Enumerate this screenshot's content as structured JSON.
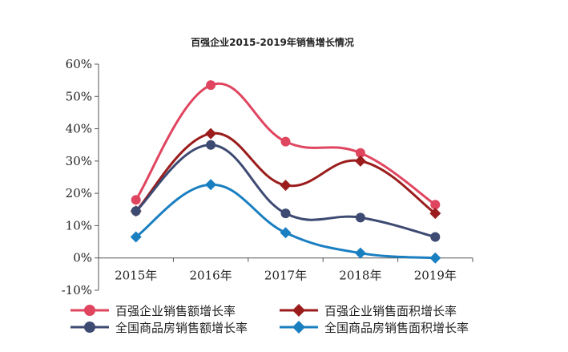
{
  "chart_data": {
    "type": "line",
    "title": "百强企业2015-2019年销售增长情况",
    "xlabel": "",
    "ylabel": "",
    "categories": [
      "2015年",
      "2016年",
      "2017年",
      "2018年",
      "2019年"
    ],
    "ylim": [
      -10,
      60
    ],
    "yticks": [
      -10,
      0,
      10,
      20,
      30,
      40,
      50,
      60
    ],
    "ytick_suffix": "%",
    "grid": false,
    "smooth": true,
    "legend_position": "bottom",
    "series": [
      {
        "name": "百强企业销售额增长率",
        "values": [
          18.0,
          53.5,
          36.0,
          32.5,
          16.5
        ],
        "color": "#e0455f",
        "marker": "circle"
      },
      {
        "name": "百强企业销售面积增长率",
        "values": [
          14.5,
          38.5,
          22.5,
          30.0,
          13.8
        ],
        "color": "#9b1c1c",
        "marker": "diamond"
      },
      {
        "name": "全国商品房销售额增长率",
        "values": [
          14.5,
          35.0,
          13.8,
          12.5,
          6.5
        ],
        "color": "#3d4a72",
        "marker": "circle"
      },
      {
        "name": "全国商品房销售面积增长率",
        "values": [
          6.5,
          22.7,
          7.8,
          1.5,
          0.0
        ],
        "color": "#1a7fc1",
        "marker": "diamond"
      }
    ]
  }
}
